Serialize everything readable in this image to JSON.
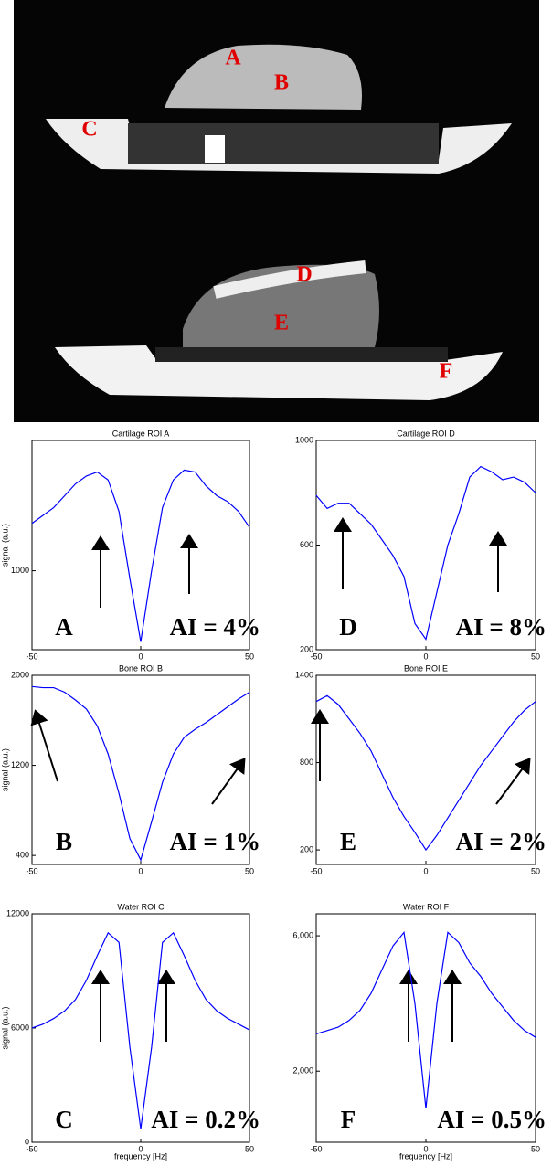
{
  "image": {
    "labels": [
      "A",
      "B",
      "C",
      "D",
      "E",
      "F"
    ]
  },
  "chart_data": [
    {
      "type": "line",
      "title": "Cartilage ROI A",
      "ylabel": "signal (a.u.)",
      "panel_label": "A",
      "annotation": "AI = 4%",
      "x": [
        -50,
        -45,
        -40,
        -35,
        -30,
        -25,
        -20,
        -15,
        -10,
        -5,
        0,
        5,
        10,
        15,
        20,
        25,
        30,
        35,
        40,
        45,
        50
      ],
      "values": [
        1120,
        1140,
        1160,
        1190,
        1220,
        1240,
        1250,
        1230,
        1150,
        980,
        820,
        1000,
        1160,
        1230,
        1255,
        1250,
        1215,
        1190,
        1175,
        1150,
        1110
      ],
      "color": "#0000ff",
      "xlim": [
        -50,
        50
      ],
      "xticks": [
        -50,
        0,
        50
      ],
      "ylim": [
        800,
        1330
      ],
      "yticks": [
        1000
      ]
    },
    {
      "type": "line",
      "title": "Cartilage ROI D",
      "panel_label": "D",
      "annotation": "AI = 8%",
      "x": [
        -50,
        -45,
        -40,
        -35,
        -30,
        -25,
        -20,
        -15,
        -10,
        -5,
        0,
        5,
        10,
        15,
        20,
        25,
        30,
        35,
        40,
        45,
        50
      ],
      "values": [
        790,
        740,
        760,
        760,
        720,
        680,
        620,
        560,
        480,
        300,
        240,
        420,
        600,
        720,
        860,
        900,
        880,
        850,
        860,
        840,
        800
      ],
      "color": "#0000ff",
      "xlim": [
        -50,
        50
      ],
      "xticks": [
        -50,
        0,
        50
      ],
      "ylim": [
        200,
        1000
      ],
      "yticks": [
        200,
        600,
        1000
      ]
    },
    {
      "type": "line",
      "title": "Bone ROI B",
      "ylabel": "signal (a.u.)",
      "panel_label": "B",
      "annotation": "AI = 1%",
      "x": [
        -50,
        -45,
        -40,
        -35,
        -30,
        -25,
        -20,
        -15,
        -10,
        -5,
        0,
        5,
        10,
        15,
        20,
        25,
        30,
        35,
        40,
        45,
        50
      ],
      "values": [
        1900,
        1890,
        1890,
        1850,
        1780,
        1700,
        1550,
        1300,
        950,
        550,
        360,
        700,
        1050,
        1300,
        1450,
        1520,
        1580,
        1650,
        1720,
        1790,
        1850
      ],
      "color": "#0000ff",
      "xlim": [
        -50,
        50
      ],
      "xticks": [
        -50,
        0,
        50
      ],
      "ylim": [
        320,
        2000
      ],
      "yticks": [
        400,
        1200,
        2000
      ]
    },
    {
      "type": "line",
      "title": "Bone ROI E",
      "panel_label": "E",
      "annotation": "AI = 2%",
      "x": [
        -50,
        -45,
        -40,
        -35,
        -30,
        -25,
        -20,
        -15,
        -10,
        -5,
        0,
        5,
        10,
        15,
        20,
        25,
        30,
        35,
        40,
        45,
        50
      ],
      "values": [
        1220,
        1260,
        1200,
        1100,
        1000,
        880,
        720,
        560,
        430,
        320,
        200,
        300,
        420,
        540,
        660,
        780,
        880,
        980,
        1080,
        1160,
        1220
      ],
      "color": "#0000ff",
      "xlim": [
        -50,
        50
      ],
      "xticks": [
        -50,
        0,
        50
      ],
      "ylim": [
        100,
        1400
      ],
      "yticks": [
        200,
        800,
        1400
      ]
    },
    {
      "type": "line",
      "title": "Water ROI C",
      "ylabel": "signal (a.u.)",
      "xlabel": "frequency [Hz]",
      "panel_label": "C",
      "annotation": "AI = 0.2%",
      "x": [
        -50,
        -45,
        -40,
        -35,
        -30,
        -25,
        -20,
        -15,
        -10,
        -5,
        0,
        5,
        10,
        15,
        20,
        25,
        30,
        35,
        40,
        45,
        50
      ],
      "values": [
        6000,
        6200,
        6500,
        6900,
        7500,
        8500,
        9800,
        11000,
        10500,
        5000,
        700,
        5000,
        10500,
        11000,
        9800,
        8500,
        7500,
        6900,
        6500,
        6200,
        5900
      ],
      "color": "#0000ff",
      "xlim": [
        -50,
        50
      ],
      "xticks": [
        -50,
        0,
        50
      ],
      "ylim": [
        0,
        12000
      ],
      "yticks": [
        0,
        6000,
        12000
      ]
    },
    {
      "type": "line",
      "title": "Water ROI F",
      "xlabel": "frequency [Hz]",
      "panel_label": "F",
      "annotation": "AI = 0.5%",
      "x": [
        -50,
        -45,
        -40,
        -35,
        -30,
        -25,
        -20,
        -15,
        -10,
        -5,
        0,
        5,
        10,
        15,
        20,
        25,
        30,
        35,
        40,
        45,
        50
      ],
      "values": [
        3100,
        3200,
        3300,
        3500,
        3800,
        4300,
        5000,
        5700,
        6100,
        4000,
        900,
        4000,
        6100,
        5800,
        5200,
        4800,
        4300,
        3900,
        3500,
        3200,
        3000
      ],
      "color": "#0000ff",
      "xlim": [
        -50,
        50
      ],
      "xticks": [
        -50,
        0,
        50
      ],
      "ylim": [
        -100,
        6650
      ],
      "yticks": [
        {
          "value": 2000,
          "label": "2,000"
        },
        {
          "value": 6000,
          "label": "6,000"
        }
      ]
    }
  ]
}
